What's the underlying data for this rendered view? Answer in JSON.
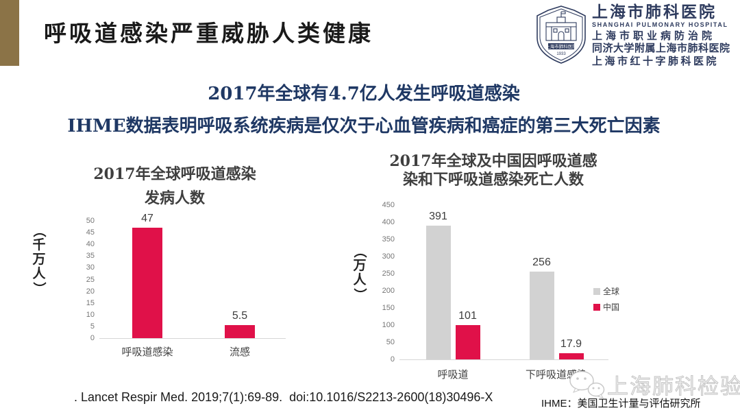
{
  "slide": {
    "title": "呼吸道感染严重威胁人类健康",
    "subtitle_line1": "2017年全球有4.7亿人发生呼吸道感染",
    "subtitle_line2": "IHME数据表明呼吸系统疾病是仅次于心血管疾病和癌症的第三大死亡因素",
    "citation": ". Lancet Respir Med. 2019;7(1):69-89.  doi:10.1016/S2213-2600(18)30496-X",
    "ihme_note": "IHME：美国卫生计量与评估研究所",
    "watermark_text": "上海肺科检验"
  },
  "logo": {
    "hospital_name_cn": "上海市肺科医院",
    "hospital_name_en": "SHANGHAI PULMONARY HOSPITAL",
    "affiliate1": "上海市职业病防治院",
    "affiliate2": "同济大学附属上海市肺科医院",
    "affiliate3": "上海市红十字肺科医院",
    "crest_year": "1933"
  },
  "colors": {
    "accent_bar": "#8b7347",
    "navy_text": "#1f3864",
    "crimson": "#e01149",
    "gray_bar": "#d2d2d2"
  },
  "chart_data": [
    {
      "type": "bar",
      "title": "2017年全球呼吸道感染发病人数",
      "title_lines": [
        "2017年全球呼吸道感染",
        "发病人数"
      ],
      "ylabel": "（千万人）",
      "xlabel": "",
      "categories": [
        "呼吸道感染",
        "流感"
      ],
      "values": [
        47,
        5.5
      ],
      "value_labels": [
        "47",
        "5.5"
      ],
      "ylim": [
        0,
        50
      ],
      "ytick_step": 5,
      "bar_color": "#e01149",
      "grid": false,
      "legend_position": "none"
    },
    {
      "type": "bar",
      "title": "2017年全球及中国因呼吸道感染和下呼吸道感染死亡人数",
      "title_lines": [
        "2017年全球及中国因呼吸道感",
        "染和下呼吸道感染死亡人数"
      ],
      "ylabel": "（万人）",
      "xlabel": "",
      "categories": [
        "呼吸道",
        "下呼吸道感染"
      ],
      "series": [
        {
          "name": "全球",
          "values": [
            391,
            256
          ],
          "value_labels": [
            "391",
            "256"
          ],
          "color": "#d2d2d2"
        },
        {
          "name": "中国",
          "values": [
            101,
            17.9
          ],
          "value_labels": [
            "101",
            "17.9"
          ],
          "color": "#e01149"
        }
      ],
      "ylim": [
        0,
        450
      ],
      "ytick_step": 50,
      "grid": false,
      "legend_position": "right"
    }
  ]
}
